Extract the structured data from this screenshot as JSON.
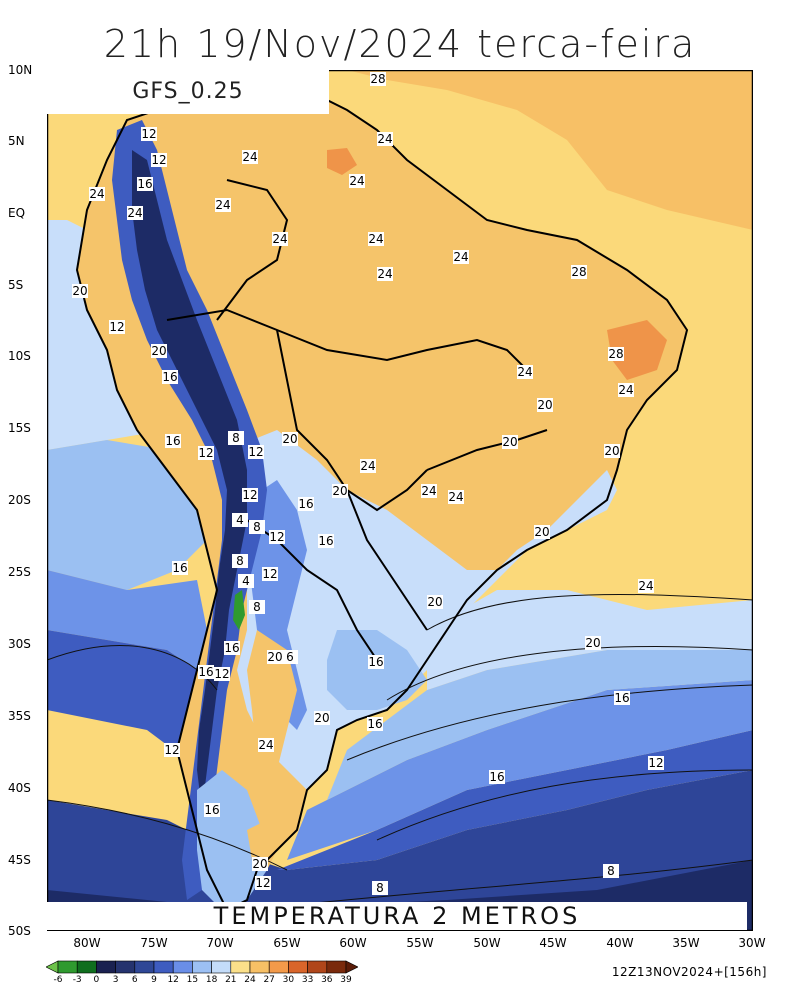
{
  "title": "21h 19/Nov/2024 terca-feira",
  "model_label": "GFS_0.25",
  "variable_label": "TEMPERATURA 2 METROS",
  "run_info": "12Z13NOV2024+[156h]",
  "lat_labels": [
    "10N",
    "5N",
    "EQ",
    "5S",
    "10S",
    "15S",
    "20S",
    "25S",
    "30S",
    "35S",
    "40S",
    "45S",
    "50S"
  ],
  "lon_labels": [
    "80W",
    "75W",
    "70W",
    "65W",
    "60W",
    "55W",
    "50W",
    "45W",
    "40W",
    "35W",
    "30W"
  ],
  "colorbar": {
    "ticks": [
      "-6",
      "-3",
      "0",
      "3",
      "6",
      "9",
      "12",
      "15",
      "18",
      "21",
      "24",
      "27",
      "30",
      "33",
      "36",
      "39"
    ],
    "colors": [
      "#6cc24a",
      "#2f9a2f",
      "#0f6e1e",
      "#1a2150",
      "#25336e",
      "#2f4796",
      "#3e5cc0",
      "#6a8ee8",
      "#9cc0f4",
      "#c4dcf9",
      "#fbe08a",
      "#f7c066",
      "#f39a4a",
      "#d9652a",
      "#b0461a",
      "#7a2a0c",
      "#5a1c08"
    ]
  },
  "map_colors": {
    "ocean_warm": "#fbd97a",
    "ocean_warmest": "#f7c066",
    "land_warm": "#f5c46a",
    "land_hot": "#ef9449",
    "cool_light": "#c8defa",
    "cool_mid": "#9bc0f2",
    "cool": "#6d93e8",
    "cold": "#3e5cc0",
    "colder": "#2e4598",
    "coldest": "#1d2b66"
  },
  "contour_labels": [
    {
      "t": "28"
    },
    {
      "t": "24"
    },
    {
      "t": "20"
    },
    {
      "t": "12"
    },
    {
      "t": "16"
    },
    {
      "t": "8"
    },
    {
      "t": "4"
    },
    {
      "t": "6"
    }
  ],
  "contour_label_values": [
    "28",
    "24",
    "24",
    "24",
    "24",
    "24",
    "24",
    "24",
    "24",
    "20",
    "20",
    "28",
    "28",
    "24",
    "12",
    "12",
    "16",
    "16",
    "24",
    "24",
    "20",
    "12",
    "20",
    "16",
    "16",
    "12",
    "12",
    "8",
    "12",
    "4",
    "8",
    "12",
    "8",
    "4",
    "12",
    "8",
    "16",
    "20",
    "24",
    "24",
    "24",
    "20",
    "20",
    "20",
    "20",
    "20",
    "24",
    "16",
    "16",
    "12",
    "20",
    "6",
    "16",
    "12",
    "16",
    "20",
    "16",
    "16",
    "20",
    "24",
    "12",
    "16",
    "20",
    "12",
    "8",
    "8",
    "16",
    "16",
    "20",
    "24",
    "12",
    "20"
  ]
}
